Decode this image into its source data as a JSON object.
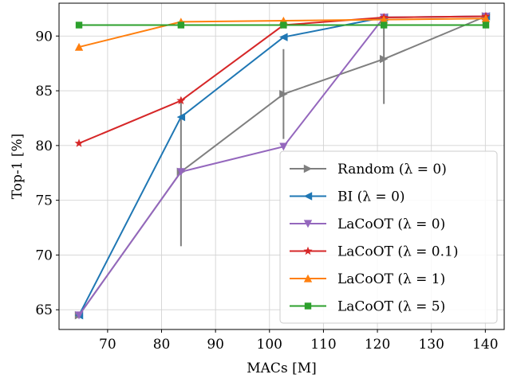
{
  "chart_data": {
    "type": "line",
    "xlabel": "MACs [M]",
    "ylabel": "Top-1 [%]",
    "xlim": [
      61,
      143.5
    ],
    "ylim": [
      63.2,
      93.0
    ],
    "xticks": [
      70,
      80,
      90,
      100,
      110,
      120,
      130,
      140
    ],
    "yticks": [
      65,
      70,
      75,
      80,
      85,
      90
    ],
    "grid": true,
    "legend_position": "lower-right",
    "series": [
      {
        "name": "Random (λ = 0)",
        "color": "#7f7f7f",
        "marker": "triangle-right",
        "x": [
          64.7,
          83.6,
          102.6,
          121.2,
          140.1
        ],
        "y": [
          64.5,
          77.6,
          84.7,
          87.9,
          91.8
        ],
        "error": [
          null,
          6.8,
          4.1,
          4.1,
          null
        ]
      },
      {
        "name": "BI (λ = 0)",
        "color": "#1f77b4",
        "marker": "triangle-left",
        "x": [
          64.7,
          83.6,
          102.6,
          121.2,
          140.1
        ],
        "y": [
          64.5,
          82.6,
          89.9,
          91.7,
          91.8
        ]
      },
      {
        "name": "LaCoOT (λ = 0)",
        "color": "#9467bd",
        "marker": "triangle-down",
        "x": [
          64.7,
          83.6,
          102.6,
          121.2,
          140.1
        ],
        "y": [
          64.5,
          77.6,
          79.9,
          91.7,
          91.8
        ]
      },
      {
        "name": "LaCoOT (λ = 0.1)",
        "color": "#d62728",
        "marker": "star",
        "x": [
          64.7,
          83.6,
          102.6,
          121.2,
          140.1
        ],
        "y": [
          80.2,
          84.1,
          91.0,
          91.7,
          91.8
        ]
      },
      {
        "name": "LaCoOT (λ = 1)",
        "color": "#ff7f0e",
        "marker": "triangle-up",
        "x": [
          64.7,
          83.6,
          102.6,
          121.2,
          140.1
        ],
        "y": [
          89.0,
          91.3,
          91.4,
          91.5,
          91.6
        ]
      },
      {
        "name": "LaCoOT (λ = 5)",
        "color": "#2ca02c",
        "marker": "square",
        "x": [
          64.7,
          83.6,
          102.6,
          121.2,
          140.1
        ],
        "y": [
          91.0,
          91.0,
          91.0,
          91.0,
          91.0
        ]
      }
    ]
  }
}
